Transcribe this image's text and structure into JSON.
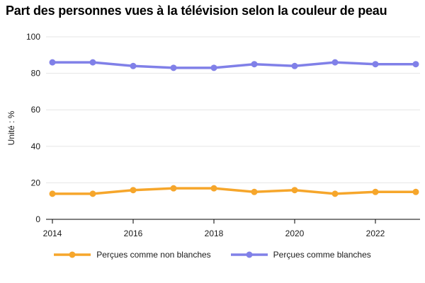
{
  "chart": {
    "title": "Part des personnes vues à la télévision selon la couleur de peau",
    "y_axis_label": "Unité : %"
  },
  "chart_data": {
    "type": "line",
    "title": "Part des personnes vues à la télévision selon la couleur de peau",
    "xlabel": "",
    "ylabel": "Unité : %",
    "x": [
      2014,
      2015,
      2016,
      2017,
      2018,
      2019,
      2020,
      2021,
      2022,
      2023
    ],
    "series": [
      {
        "name": "Perçues comme non blanches",
        "color": "#F6A62B",
        "values": [
          14,
          14,
          16,
          17,
          17,
          15,
          16,
          14,
          15,
          15
        ]
      },
      {
        "name": "Perçues comme blanches",
        "color": "#8080E8",
        "values": [
          86,
          86,
          84,
          83,
          83,
          85,
          84,
          86,
          85,
          85
        ]
      }
    ],
    "ylim": [
      0,
      100
    ],
    "yticks": [
      0,
      20,
      40,
      60,
      80,
      100
    ],
    "xticks": [
      2014,
      2016,
      2018,
      2020,
      2022
    ],
    "grid": "horizontal",
    "legend_position": "bottom",
    "gridline_color": "#e6e6e6",
    "axis_color": "#000000",
    "tick_label_color": "#1a1a1a"
  }
}
